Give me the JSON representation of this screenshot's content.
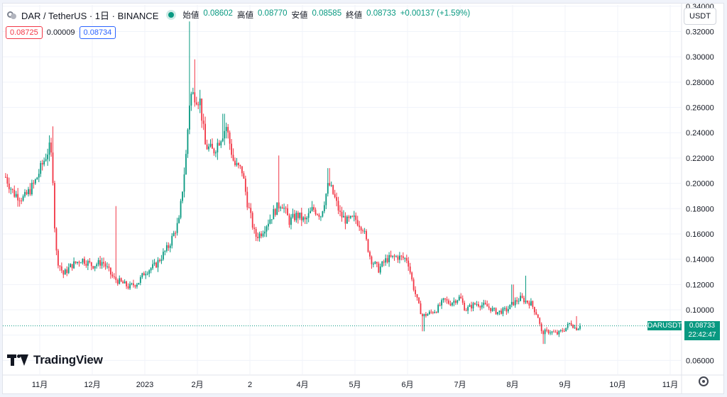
{
  "header": {
    "title": "DAR / TetherUS · 1日 · BINANCE",
    "ohlc": [
      {
        "label": "始値",
        "value": "0.08602"
      },
      {
        "label": "高値",
        "value": "0.08770"
      },
      {
        "label": "安値",
        "value": "0.08585"
      },
      {
        "label": "終値",
        "value": "0.08733"
      }
    ],
    "change": "+0.00137 (+1.59%)"
  },
  "trade": {
    "sell": "0.08725",
    "spread": "0.00009",
    "buy": "0.08734"
  },
  "currency_button": "USDT",
  "logo_text": "TradingView",
  "last_price": {
    "symbol": "DARUSDT",
    "price": "0.08733",
    "countdown": "22:42:47"
  },
  "colors": {
    "up": "#089981",
    "down": "#f23645",
    "sell": "#f23645",
    "buy": "#2962ff"
  },
  "chart_data": {
    "type": "candlestick",
    "x_axis": {
      "ticks": [
        "11月",
        "12月",
        "2023",
        "2月",
        "2",
        "4月",
        "5月",
        "6月",
        "7月",
        "8月",
        "9月",
        "10月",
        "11月"
      ]
    },
    "y_axis": {
      "ticks": [
        "0.06000",
        "0.08000",
        "0.10000",
        "0.12000",
        "0.14000",
        "0.16000",
        "0.18000",
        "0.20000",
        "0.22000",
        "0.24000",
        "0.26000",
        "0.28000",
        "0.30000",
        "0.32000",
        "0.34000"
      ],
      "range": [
        0.049,
        0.341
      ]
    },
    "month_index": {
      "11月": 0,
      "12月": 1,
      "2023": 2,
      "2月": 3,
      "2": 4,
      "4月": 5,
      "5月": 6,
      "6月": 7,
      "7月": 8,
      "8月": 9,
      "9月": 10,
      "10月": 11
    },
    "close_anchors": [
      [
        -0.65,
        0.205
      ],
      [
        -0.5,
        0.192
      ],
      [
        -0.3,
        0.188
      ],
      [
        -0.1,
        0.2
      ],
      [
        0.05,
        0.215
      ],
      [
        0.18,
        0.228
      ],
      [
        0.24,
        0.218
      ],
      [
        0.27,
        0.178
      ],
      [
        0.3,
        0.152
      ],
      [
        0.33,
        0.14
      ],
      [
        0.45,
        0.128
      ],
      [
        0.6,
        0.135
      ],
      [
        0.8,
        0.14
      ],
      [
        1.0,
        0.135
      ],
      [
        1.2,
        0.138
      ],
      [
        1.4,
        0.125
      ],
      [
        1.7,
        0.118
      ],
      [
        1.88,
        0.122
      ],
      [
        2.0,
        0.13
      ],
      [
        2.2,
        0.135
      ],
      [
        2.45,
        0.15
      ],
      [
        2.65,
        0.17
      ],
      [
        2.78,
        0.22
      ],
      [
        2.86,
        0.27
      ],
      [
        2.95,
        0.27
      ],
      [
        3.05,
        0.265
      ],
      [
        3.15,
        0.23
      ],
      [
        3.3,
        0.225
      ],
      [
        3.55,
        0.245
      ],
      [
        3.7,
        0.215
      ],
      [
        3.85,
        0.21
      ],
      [
        3.95,
        0.185
      ],
      [
        4.1,
        0.158
      ],
      [
        4.2,
        0.16
      ],
      [
        4.35,
        0.17
      ],
      [
        4.5,
        0.18
      ],
      [
        4.6,
        0.185
      ],
      [
        4.75,
        0.17
      ],
      [
        4.9,
        0.175
      ],
      [
        5.05,
        0.17
      ],
      [
        5.2,
        0.18
      ],
      [
        5.35,
        0.175
      ],
      [
        5.5,
        0.2
      ],
      [
        5.6,
        0.19
      ],
      [
        5.72,
        0.175
      ],
      [
        5.85,
        0.17
      ],
      [
        6.0,
        0.172
      ],
      [
        6.15,
        0.165
      ],
      [
        6.3,
        0.14
      ],
      [
        6.45,
        0.132
      ],
      [
        6.6,
        0.14
      ],
      [
        6.8,
        0.142
      ],
      [
        7.0,
        0.14
      ],
      [
        7.1,
        0.12
      ],
      [
        7.2,
        0.105
      ],
      [
        7.28,
        0.095
      ],
      [
        7.4,
        0.097
      ],
      [
        7.55,
        0.1
      ],
      [
        7.7,
        0.108
      ],
      [
        7.8,
        0.105
      ],
      [
        8.0,
        0.11
      ],
      [
        8.1,
        0.1
      ],
      [
        8.3,
        0.105
      ],
      [
        8.5,
        0.103
      ],
      [
        8.7,
        0.098
      ],
      [
        8.9,
        0.1
      ],
      [
        9.0,
        0.105
      ],
      [
        9.15,
        0.109
      ],
      [
        9.35,
        0.105
      ],
      [
        9.48,
        0.095
      ],
      [
        9.55,
        0.082
      ],
      [
        9.7,
        0.083
      ],
      [
        9.85,
        0.081
      ],
      [
        10.0,
        0.085
      ],
      [
        10.1,
        0.09
      ],
      [
        10.2,
        0.085
      ],
      [
        10.3,
        0.0873
      ]
    ],
    "spikes": [
      {
        "t": 0.25,
        "high": 0.245
      },
      {
        "t": 1.45,
        "high": 0.182
      },
      {
        "t": 2.85,
        "high": 0.328
      },
      {
        "t": 2.95,
        "high": 0.298
      },
      {
        "t": 3.5,
        "high": 0.255
      },
      {
        "t": 4.55,
        "high": 0.222
      },
      {
        "t": 5.5,
        "high": 0.212
      },
      {
        "t": 7.3,
        "low": 0.083
      },
      {
        "t": 9.0,
        "high": 0.12
      },
      {
        "t": 9.25,
        "high": 0.127
      },
      {
        "t": 9.6,
        "low": 0.073
      },
      {
        "t": 10.22,
        "high": 0.095
      }
    ],
    "last_price": 0.08733,
    "grid": true
  }
}
